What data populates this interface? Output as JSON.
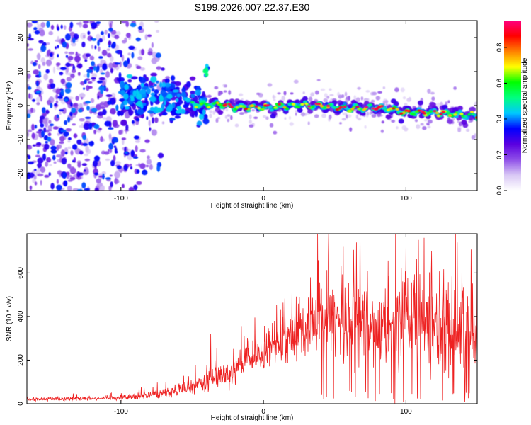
{
  "title": "S199.2026.007.22.37.E30",
  "chart_data": [
    {
      "type": "heatmap",
      "name": "spectrogram",
      "xlabel": "Height of straight line (km)",
      "ylabel": "Frequency (Hz)",
      "xlim": [
        -166,
        150
      ],
      "ylim": [
        -25,
        25
      ],
      "xticks": [
        -100,
        0,
        100
      ],
      "yticks": [
        -20,
        -10,
        0,
        10,
        20
      ],
      "colorbar": {
        "label": "Normalized spectral amplitude",
        "range": [
          0,
          0.95
        ],
        "ticks": [
          0.0,
          0.2,
          0.4,
          0.6,
          0.8
        ],
        "colormap": [
          "#ffffff",
          "#d9c8f5",
          "#8f4fe8",
          "#5a00e0",
          "#0000ff",
          "#00c8ff",
          "#00ff80",
          "#00ff00",
          "#ffff00",
          "#ff8000",
          "#ff0000",
          "#ff0080"
        ]
      },
      "track": {
        "x": [
          -166,
          -120,
          -100,
          -80,
          -60,
          -40,
          -30,
          -20,
          0,
          20,
          40,
          60,
          80,
          100,
          120,
          150
        ],
        "freq": [
          0,
          0.5,
          2,
          3,
          1,
          0,
          0.5,
          -0.5,
          -0.5,
          0,
          0,
          -1,
          -0.5,
          -2,
          -2,
          -3
        ]
      },
      "annotations": [
        "isolated blob near x=-40 km, f=+10 Hz"
      ]
    },
    {
      "type": "line",
      "name": "snr",
      "xlabel": "Height of straight line (km)",
      "ylabel": "SNR (10 * v/v)",
      "xlim": [
        -166,
        150
      ],
      "ylim": [
        0,
        780
      ],
      "xticks": [
        -100,
        0,
        100
      ],
      "yticks": [
        0,
        200,
        400,
        600
      ],
      "color": "#ee2222",
      "envelope": {
        "x": [
          -166,
          -140,
          -120,
          -100,
          -80,
          -60,
          -50,
          -40,
          -30,
          -20,
          -10,
          0,
          10,
          20,
          30,
          40,
          60,
          80,
          100,
          120,
          150
        ],
        "mean": [
          20,
          22,
          25,
          28,
          40,
          60,
          80,
          100,
          130,
          160,
          200,
          230,
          280,
          320,
          340,
          380,
          370,
          360,
          380,
          360,
          340
        ],
        "spread": [
          10,
          10,
          10,
          14,
          20,
          30,
          40,
          60,
          60,
          70,
          80,
          90,
          100,
          110,
          130,
          160,
          200,
          220,
          220,
          220,
          200
        ]
      },
      "peaks": [
        {
          "x": -37,
          "y": 320
        },
        {
          "x": 33,
          "y": 580
        },
        {
          "x": 38,
          "y": 780
        },
        {
          "x": 56,
          "y": 720
        },
        {
          "x": 100,
          "y": 720
        },
        {
          "x": 118,
          "y": 700
        },
        {
          "x": 136,
          "y": 740
        }
      ]
    }
  ]
}
